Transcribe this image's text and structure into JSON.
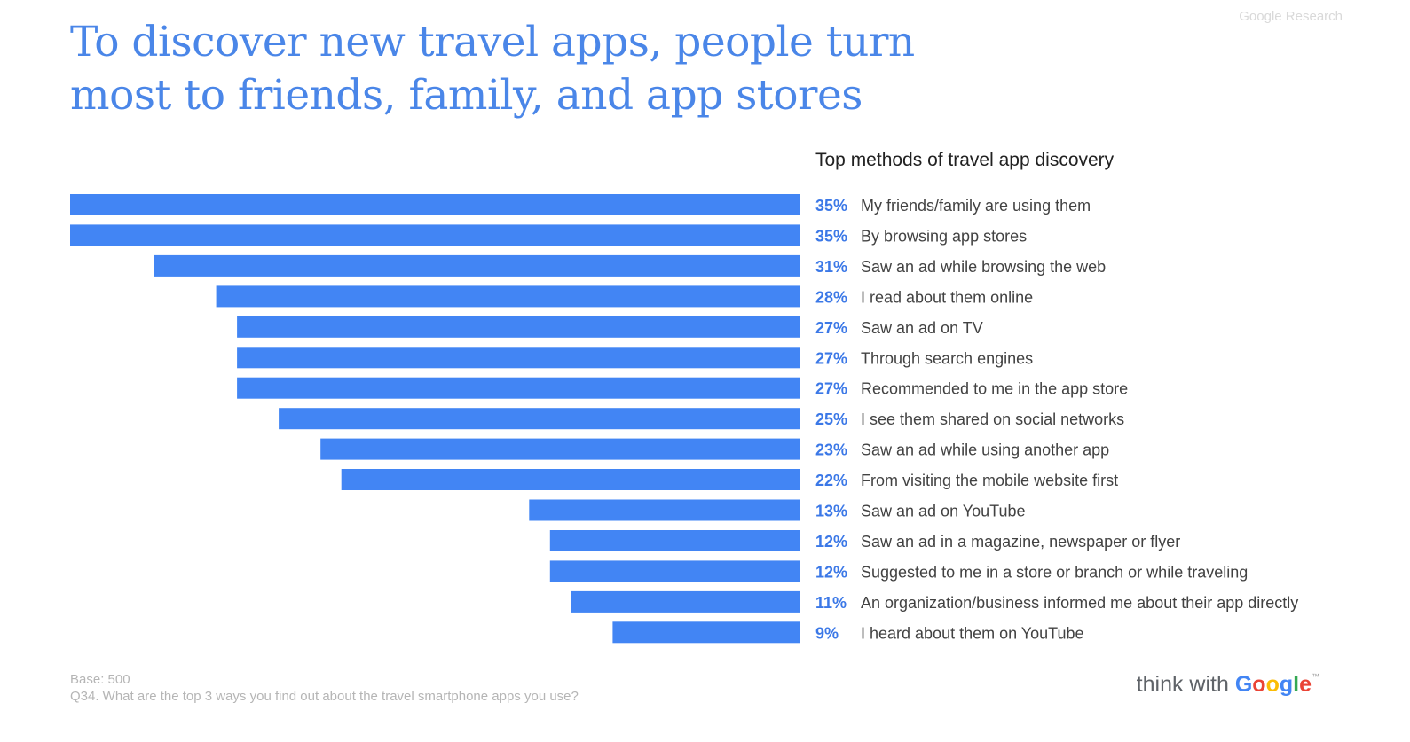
{
  "header": {
    "source_tag": "Google Research",
    "headline": "To discover new travel apps, people turn most to friends, family, and app stores"
  },
  "colors": {
    "bar": "#4285f4",
    "value_label": "#3b78e7",
    "headline": "#4a86e8",
    "category_label": "#424242"
  },
  "chart_data": {
    "type": "bar",
    "orientation": "horizontal",
    "title": "Top methods of travel app discovery",
    "value_format": "percent",
    "xlim": [
      0,
      35
    ],
    "grid": false,
    "legend": "none",
    "categories": [
      "My friends/family are using them",
      "By browsing app stores",
      "Saw an ad while browsing the web",
      "I read about them online",
      "Saw an ad on TV",
      "Through search engines",
      "Recommended to me in the app store",
      "I see them shared on social networks",
      "Saw an ad while using another app",
      "From visiting the mobile website first",
      "Saw an ad on YouTube",
      "Saw an ad in a magazine, newspaper or flyer",
      "Suggested to me in a store or branch or while traveling",
      "An organization/business informed me about their app directly",
      "I heard about them on YouTube"
    ],
    "values": [
      35,
      35,
      31,
      28,
      27,
      27,
      27,
      25,
      23,
      22,
      13,
      12,
      12,
      11,
      9
    ],
    "value_labels": [
      "35%",
      "35%",
      "31%",
      "28%",
      "27%",
      "27%",
      "27%",
      "25%",
      "23%",
      "22%",
      "13%",
      "12%",
      "12%",
      "11%",
      "9%"
    ]
  },
  "footer": {
    "base": "Base: 500",
    "question": "Q34. What are the top 3 ways you find out about the travel smartphone apps you use?",
    "brand_prefix": "think with",
    "brand_name": "Google",
    "brand_letter_colors": [
      "#4285f4",
      "#ea4335",
      "#fbbc05",
      "#4285f4",
      "#34a853",
      "#ea4335"
    ]
  }
}
